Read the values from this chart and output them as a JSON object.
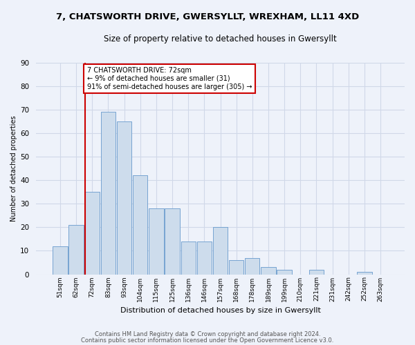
{
  "title1": "7, CHATSWORTH DRIVE, GWERSYLLT, WREXHAM, LL11 4XD",
  "title2": "Size of property relative to detached houses in Gwersyllt",
  "xlabel": "Distribution of detached houses by size in Gwersyllt",
  "ylabel": "Number of detached properties",
  "bins": [
    "51sqm",
    "62sqm",
    "72sqm",
    "83sqm",
    "93sqm",
    "104sqm",
    "115sqm",
    "125sqm",
    "136sqm",
    "146sqm",
    "157sqm",
    "168sqm",
    "178sqm",
    "189sqm",
    "199sqm",
    "210sqm",
    "221sqm",
    "231sqm",
    "242sqm",
    "252sqm",
    "263sqm"
  ],
  "values": [
    12,
    21,
    35,
    69,
    65,
    42,
    28,
    28,
    14,
    14,
    20,
    6,
    7,
    3,
    2,
    0,
    2,
    0,
    0,
    1,
    0
  ],
  "bar_color": "#cddcec",
  "bar_edge_color": "#6699cc",
  "property_line_bin_index": 2,
  "annotation_text": "7 CHATSWORTH DRIVE: 72sqm\n← 9% of detached houses are smaller (31)\n91% of semi-detached houses are larger (305) →",
  "annotation_box_color": "#ffffff",
  "annotation_box_edge": "#cc0000",
  "property_line_color": "#cc0000",
  "ylim": [
    0,
    90
  ],
  "yticks": [
    0,
    10,
    20,
    30,
    40,
    50,
    60,
    70,
    80,
    90
  ],
  "footer1": "Contains HM Land Registry data © Crown copyright and database right 2024.",
  "footer2": "Contains public sector information licensed under the Open Government Licence v3.0.",
  "bg_color": "#eef2fa",
  "grid_color": "#d0d8e8",
  "title1_fontsize": 9.5,
  "title2_fontsize": 8.5
}
